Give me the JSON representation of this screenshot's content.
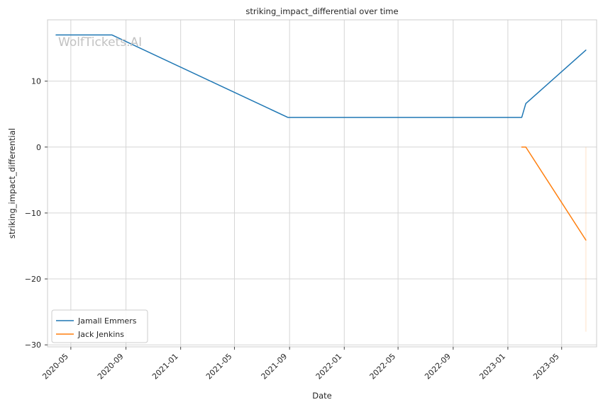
{
  "chart_data": {
    "type": "line",
    "title": "striking_impact_differential over time",
    "xlabel": "Date",
    "ylabel": "striking_impact_differential",
    "watermark": "WolfTickets.AI",
    "x_ticks": [
      "2020-05",
      "2020-09",
      "2021-01",
      "2021-05",
      "2021-09",
      "2022-01",
      "2022-05",
      "2022-09",
      "2023-01",
      "2023-05"
    ],
    "y_ticks": [
      10,
      0,
      -10,
      -20,
      -30
    ],
    "y_tick_labels": [
      "10",
      "0",
      "−10",
      "−20",
      "−30"
    ],
    "xlim": [
      "2020-03-10",
      "2023-07-18"
    ],
    "ylim": [
      -30.3,
      19.3
    ],
    "grid": true,
    "legend_position": "lower-left",
    "series": [
      {
        "name": "Jamall Emmers",
        "color": "#1f77b4",
        "points": [
          {
            "x": "2020-03-29",
            "y": 17.0
          },
          {
            "x": "2020-08-01",
            "y": 17.0
          },
          {
            "x": "2021-08-28",
            "y": 4.5
          },
          {
            "x": "2023-02-01",
            "y": 4.5
          },
          {
            "x": "2023-02-10",
            "y": 6.6
          },
          {
            "x": "2023-06-24",
            "y": 14.7
          }
        ]
      },
      {
        "name": "Jack Jenkins",
        "color": "#ff7f0e",
        "points": [
          {
            "x": "2023-02-01",
            "y": 0.0
          },
          {
            "x": "2023-02-10",
            "y": 0.0
          },
          {
            "x": "2023-06-24",
            "y": -14.1
          }
        ]
      }
    ],
    "faint_band": {
      "x": "2023-06-24",
      "y_from": 0.0,
      "y_to": -28.0,
      "color": "#ff7f0e"
    }
  }
}
